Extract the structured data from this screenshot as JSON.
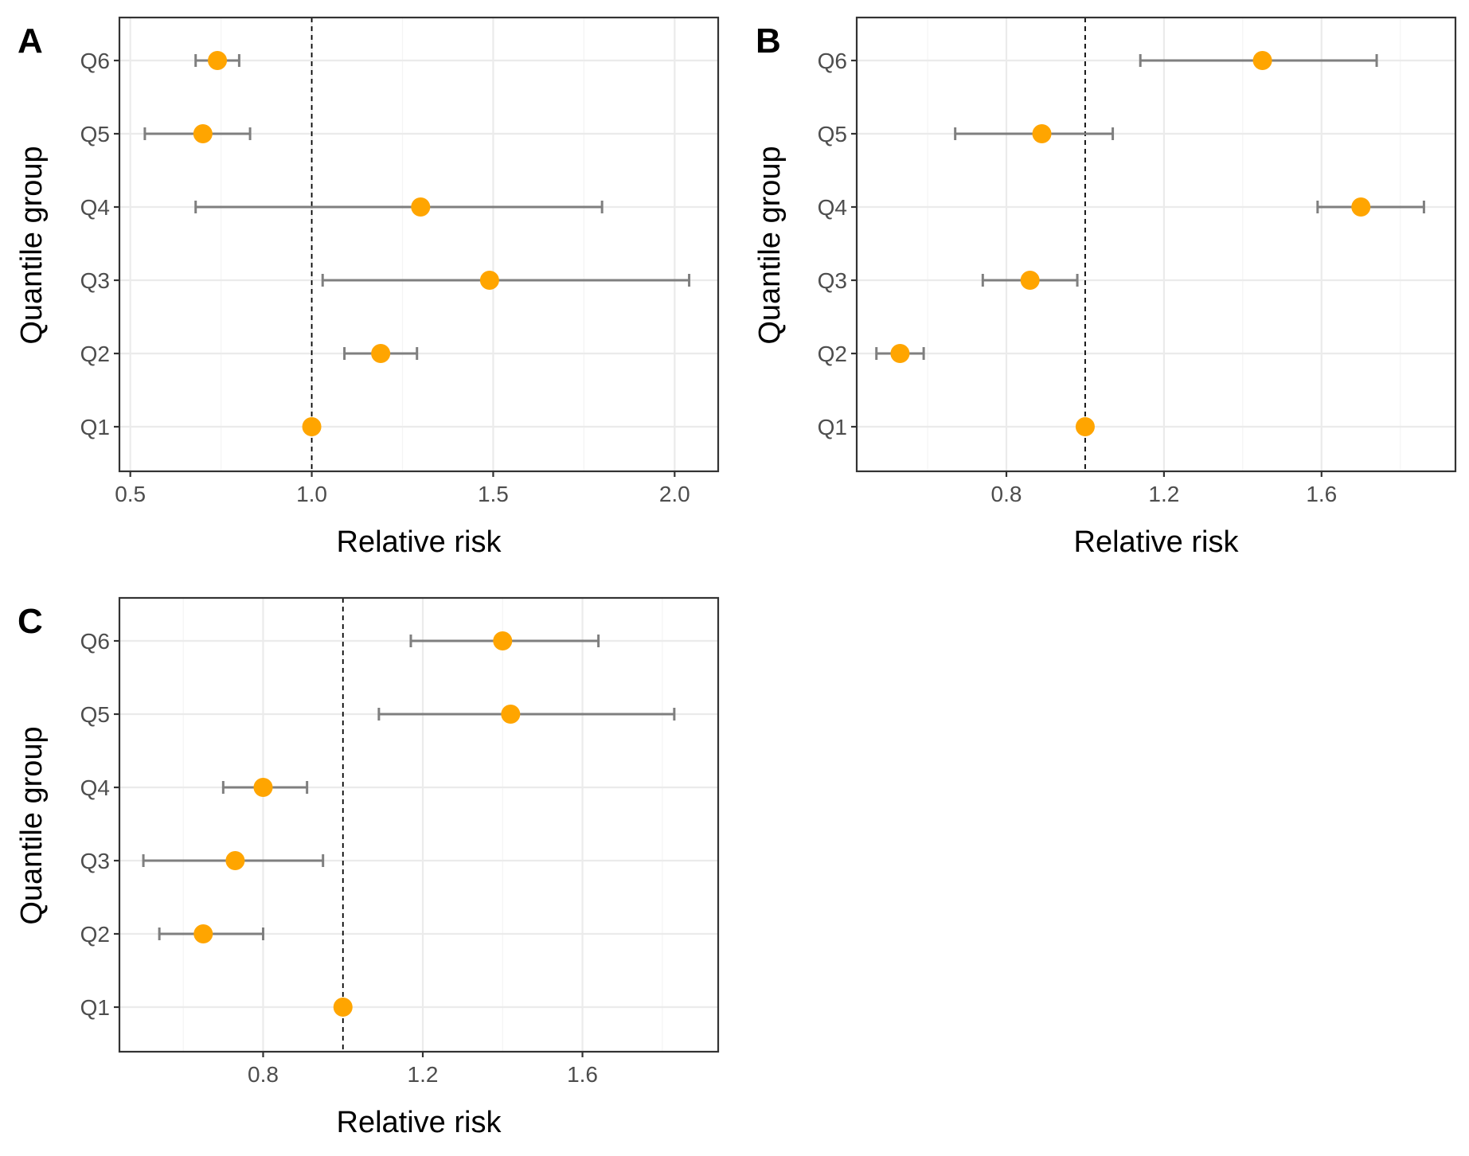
{
  "figure": {
    "ylabel": "Quantile group",
    "xlabel": "Relative risk",
    "reference_value": 1.0,
    "point_color": "#FFA500",
    "errorbar_color": "#7F7F7F"
  },
  "chart_data": [
    {
      "panel": "A",
      "type": "scatter",
      "xlabel": "Relative risk",
      "ylabel": "Quantile group",
      "categories": [
        "Q1",
        "Q2",
        "Q3",
        "Q4",
        "Q5",
        "Q6"
      ],
      "estimate": [
        1.0,
        1.19,
        1.49,
        1.3,
        0.7,
        0.74
      ],
      "ci_low": [
        null,
        1.09,
        1.03,
        0.68,
        0.54,
        0.68
      ],
      "ci_high": [
        null,
        1.29,
        2.04,
        1.8,
        0.83,
        0.8
      ],
      "xlim": [
        0.47,
        2.12
      ],
      "xticks": [
        0.5,
        1.0,
        1.5,
        2.0
      ],
      "xtick_labels": [
        "0.5",
        "1.0",
        "1.5",
        "2.0"
      ],
      "reference_line": 1.0,
      "grid": true
    },
    {
      "panel": "B",
      "type": "scatter",
      "xlabel": "Relative risk",
      "ylabel": "Quantile group",
      "categories": [
        "Q1",
        "Q2",
        "Q3",
        "Q4",
        "Q5",
        "Q6"
      ],
      "estimate": [
        1.0,
        0.53,
        0.86,
        1.7,
        0.89,
        1.45
      ],
      "ci_low": [
        null,
        0.47,
        0.74,
        1.59,
        0.67,
        1.14
      ],
      "ci_high": [
        null,
        0.59,
        0.98,
        1.86,
        1.07,
        1.74
      ],
      "xlim": [
        0.42,
        1.94
      ],
      "xticks": [
        0.8,
        1.2,
        1.6
      ],
      "xtick_labels": [
        "0.8",
        "1.2",
        "1.6"
      ],
      "reference_line": 1.0,
      "grid": true
    },
    {
      "panel": "C",
      "type": "scatter",
      "xlabel": "Relative risk",
      "ylabel": "Quantile group",
      "categories": [
        "Q1",
        "Q2",
        "Q3",
        "Q4",
        "Q5",
        "Q6"
      ],
      "estimate": [
        1.0,
        0.65,
        0.73,
        0.8,
        1.42,
        1.4
      ],
      "ci_low": [
        null,
        0.54,
        0.5,
        0.7,
        1.09,
        1.17
      ],
      "ci_high": [
        null,
        0.8,
        0.95,
        0.91,
        1.83,
        1.64
      ],
      "xlim": [
        0.44,
        1.94
      ],
      "xticks": [
        0.8,
        1.2,
        1.6
      ],
      "xtick_labels": [
        "0.8",
        "1.2",
        "1.6"
      ],
      "reference_line": 1.0,
      "grid": true
    }
  ]
}
